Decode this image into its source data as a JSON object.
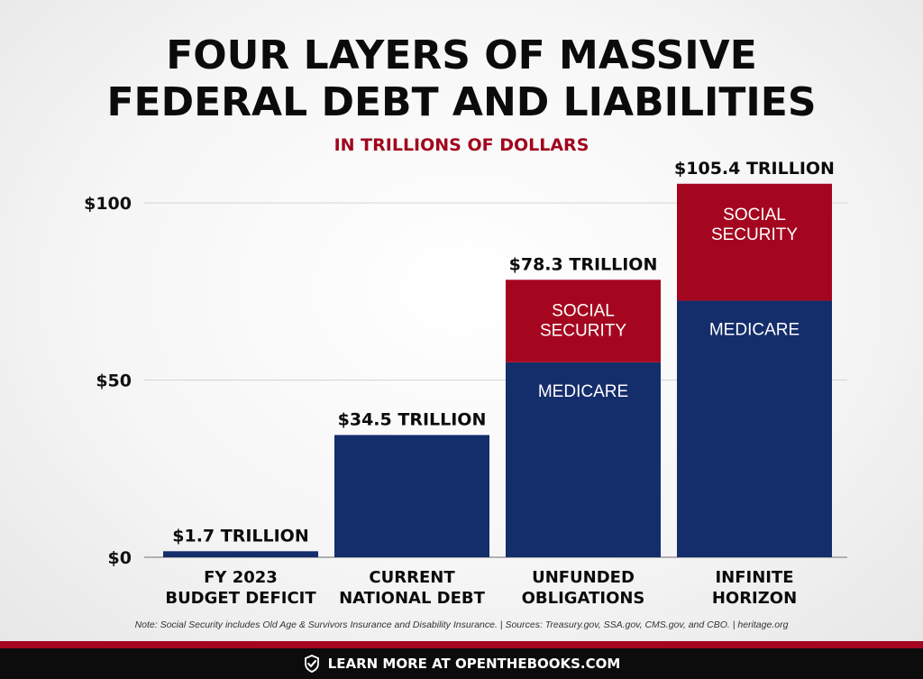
{
  "header": {
    "title_line1": "FOUR LAYERS OF MASSIVE",
    "title_line2": "FEDERAL DEBT AND LIABILITIES",
    "subtitle": "IN TRILLIONS OF DOLLARS"
  },
  "chart_data": {
    "type": "bar",
    "stacked": true,
    "title": "FOUR LAYERS OF MASSIVE FEDERAL DEBT AND LIABILITIES",
    "subtitle": "IN TRILLIONS OF DOLLARS",
    "ylim": [
      0,
      100
    ],
    "yticks": [
      0,
      50,
      100
    ],
    "ytick_labels": [
      "$0",
      "$50",
      "$100"
    ],
    "grid": true,
    "bars": [
      {
        "category": [
          "FY 2023",
          "BUDGET DEFICIT"
        ],
        "total": 1.7,
        "label": "$1.7 TRILLION",
        "segments": [
          {
            "name": "",
            "value": 1.7,
            "color": "#142d6b"
          }
        ]
      },
      {
        "category": [
          "CURRENT",
          "NATIONAL DEBT"
        ],
        "total": 34.5,
        "label": "$34.5 TRILLION",
        "segments": [
          {
            "name": "",
            "value": 34.5,
            "color": "#142d6b"
          }
        ]
      },
      {
        "category": [
          "UNFUNDED",
          "OBLIGATIONS"
        ],
        "total": 78.3,
        "label": "$78.3 TRILLION",
        "segments": [
          {
            "name": "MEDICARE",
            "value": 55.0,
            "color": "#142d6b"
          },
          {
            "name": "SOCIAL SECURITY",
            "value": 23.3,
            "color": "#a5061f"
          }
        ]
      },
      {
        "category": [
          "INFINITE",
          "HORIZON"
        ],
        "total": 105.4,
        "label": "$105.4 TRILLION",
        "segments": [
          {
            "name": "MEDICARE",
            "value": 72.4,
            "color": "#142d6b"
          },
          {
            "name": "SOCIAL SECURITY",
            "value": 33.0,
            "color": "#a5061f"
          }
        ]
      }
    ]
  },
  "footnote": "Note: Social Security includes Old Age & Survivors Insurance and Disability Insurance. | Sources: Treasury.gov, SSA.gov, CMS.gov, and CBO. | heritage.org",
  "footer": {
    "icon": "checkmark-shield-icon",
    "text": "LEARN MORE AT OPENTHEBOOKS.COM"
  }
}
